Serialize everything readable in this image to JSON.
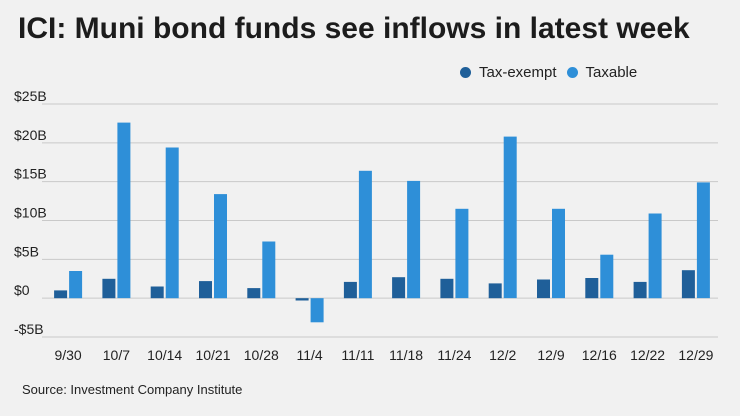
{
  "title": "ICI: Muni bond funds see inflows in latest week",
  "source": "Source: Investment Company Institute",
  "colors": {
    "tax_exempt": "#1f5f99",
    "taxable": "#2e8fd8",
    "grid": "#c9c9c9",
    "text": "#222222"
  },
  "chart_data": {
    "type": "bar",
    "title": "ICI: Muni bond funds see inflows in latest week",
    "xlabel": "",
    "ylabel": "",
    "ylim": [
      -5,
      25
    ],
    "y_ticks": [
      {
        "value": 25,
        "label": "$25B"
      },
      {
        "value": 20,
        "label": "$20B"
      },
      {
        "value": 15,
        "label": "$15B"
      },
      {
        "value": 10,
        "label": "$10B"
      },
      {
        "value": 5,
        "label": "$5B"
      },
      {
        "value": 0,
        "label": "$0"
      },
      {
        "value": -5,
        "label": "-$5B"
      }
    ],
    "categories": [
      "9/30",
      "10/7",
      "10/14",
      "10/21",
      "10/28",
      "11/4",
      "11/11",
      "11/18",
      "11/24",
      "12/2",
      "12/9",
      "12/16",
      "12/22",
      "12/29"
    ],
    "series": [
      {
        "name": "Tax-exempt",
        "values": [
          1.0,
          2.5,
          1.5,
          2.2,
          1.3,
          -0.3,
          2.1,
          2.7,
          2.5,
          1.9,
          2.4,
          2.6,
          2.1,
          3.6
        ]
      },
      {
        "name": "Taxable",
        "values": [
          3.5,
          22.6,
          19.4,
          13.4,
          7.3,
          -3.1,
          16.4,
          15.1,
          11.5,
          20.8,
          11.5,
          5.6,
          10.9,
          14.9
        ]
      }
    ],
    "legend": "top-right",
    "grid": true
  }
}
